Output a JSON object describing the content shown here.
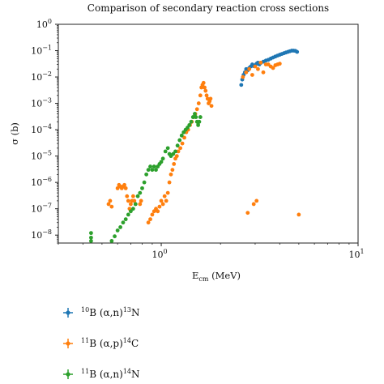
{
  "chart_data": {
    "type": "scatter",
    "title": "Comparison of secondary reaction cross sections",
    "xlabel": {
      "main": "E",
      "sub": "cm",
      "unit": " (MeV)"
    },
    "ylabel": "σ (b)",
    "xscale": "log",
    "yscale": "log",
    "xlim": [
      0.3,
      10
    ],
    "ylim": [
      5e-09,
      1
    ],
    "x_ticks": [
      {
        "value": 1,
        "label": "10",
        "exp": "0"
      },
      {
        "value": 10,
        "label": "10",
        "exp": "1"
      }
    ],
    "y_ticks": [
      {
        "value": 1,
        "label": "10",
        "exp": "0"
      },
      {
        "value": 0.1,
        "label": "10",
        "exp": "−1"
      },
      {
        "value": 0.01,
        "label": "10",
        "exp": "−2"
      },
      {
        "value": 0.001,
        "label": "10",
        "exp": "−3"
      },
      {
        "value": 0.0001,
        "label": "10",
        "exp": "−4"
      },
      {
        "value": 1e-05,
        "label": "10",
        "exp": "−5"
      },
      {
        "value": 1e-06,
        "label": "10",
        "exp": "−6"
      },
      {
        "value": 1e-07,
        "label": "10",
        "exp": "−7"
      },
      {
        "value": 1e-08,
        "label": "10",
        "exp": "−8"
      }
    ],
    "grid": false,
    "legend_position": "bottom-left",
    "series": [
      {
        "name": "10B (α,n)13N",
        "legend": {
          "m1": "10",
          "t1": "B (α,n)",
          "m2": "13",
          "t2": "N"
        },
        "color": "#1f77b4",
        "points": [
          [
            2.55,
            0.005
          ],
          [
            2.58,
            0.008
          ],
          [
            2.62,
            0.012
          ],
          [
            2.66,
            0.015
          ],
          [
            2.7,
            0.02
          ],
          [
            2.75,
            0.018
          ],
          [
            2.8,
            0.022
          ],
          [
            2.85,
            0.025
          ],
          [
            2.9,
            0.03
          ],
          [
            2.95,
            0.026
          ],
          [
            3.0,
            0.028
          ],
          [
            3.05,
            0.032
          ],
          [
            3.1,
            0.035
          ],
          [
            3.15,
            0.03
          ],
          [
            3.2,
            0.034
          ],
          [
            3.3,
            0.038
          ],
          [
            3.4,
            0.042
          ],
          [
            3.5,
            0.045
          ],
          [
            3.6,
            0.05
          ],
          [
            3.7,
            0.055
          ],
          [
            3.8,
            0.06
          ],
          [
            3.9,
            0.065
          ],
          [
            4.0,
            0.07
          ],
          [
            4.1,
            0.075
          ],
          [
            4.2,
            0.08
          ],
          [
            4.3,
            0.085
          ],
          [
            4.4,
            0.09
          ],
          [
            4.5,
            0.095
          ],
          [
            4.6,
            0.1
          ],
          [
            4.7,
            0.1
          ],
          [
            4.8,
            0.098
          ],
          [
            4.9,
            0.09
          ]
        ]
      },
      {
        "name": "11B (α,p)14C",
        "legend": {
          "m1": "11",
          "t1": "B (α,p)",
          "m2": "14",
          "t2": "C"
        },
        "color": "#ff7f0e",
        "points": [
          [
            0.54,
            1.5e-07
          ],
          [
            0.55,
            2e-07
          ],
          [
            0.56,
            1.2e-07
          ],
          [
            0.6,
            6e-07
          ],
          [
            0.61,
            8e-07
          ],
          [
            0.62,
            7e-07
          ],
          [
            0.63,
            6e-07
          ],
          [
            0.64,
            7e-07
          ],
          [
            0.65,
            8e-07
          ],
          [
            0.66,
            6e-07
          ],
          [
            0.67,
            3e-07
          ],
          [
            0.68,
            2e-07
          ],
          [
            0.69,
            1e-07
          ],
          [
            0.7,
            1.5e-07
          ],
          [
            0.71,
            2e-07
          ],
          [
            0.72,
            3e-07
          ],
          [
            0.73,
            2e-07
          ],
          [
            0.74,
            1.5e-07
          ],
          [
            0.78,
            1.5e-07
          ],
          [
            0.79,
            2e-07
          ],
          [
            0.86,
            3e-08
          ],
          [
            0.88,
            4e-08
          ],
          [
            0.9,
            6e-08
          ],
          [
            0.92,
            8e-08
          ],
          [
            0.94,
            1e-07
          ],
          [
            0.96,
            8e-08
          ],
          [
            0.98,
            1.2e-07
          ],
          [
            1.0,
            2e-07
          ],
          [
            1.02,
            1.5e-07
          ],
          [
            1.04,
            3e-07
          ],
          [
            1.06,
            2e-07
          ],
          [
            1.08,
            4e-07
          ],
          [
            1.1,
            1e-06
          ],
          [
            1.12,
            2e-06
          ],
          [
            1.14,
            3e-06
          ],
          [
            1.16,
            5e-06
          ],
          [
            1.18,
            8e-06
          ],
          [
            1.2,
            1e-05
          ],
          [
            1.22,
            1.5e-05
          ],
          [
            1.25,
            2e-05
          ],
          [
            1.28,
            3e-05
          ],
          [
            1.31,
            5e-05
          ],
          [
            1.34,
            8e-05
          ],
          [
            1.37,
            0.0001
          ],
          [
            1.4,
            0.00015
          ],
          [
            1.43,
            0.0002
          ],
          [
            1.46,
            0.0003
          ],
          [
            1.49,
            0.0004
          ],
          [
            1.52,
            0.0006
          ],
          [
            1.55,
            0.001
          ],
          [
            1.58,
            0.002
          ],
          [
            1.6,
            0.004
          ],
          [
            1.62,
            0.005
          ],
          [
            1.64,
            0.006
          ],
          [
            1.66,
            0.004
          ],
          [
            1.68,
            0.003
          ],
          [
            1.7,
            0.002
          ],
          [
            1.72,
            0.0015
          ],
          [
            1.74,
            0.001
          ],
          [
            1.76,
            0.0012
          ],
          [
            1.78,
            0.0015
          ],
          [
            1.8,
            0.0008
          ],
          [
            2.6,
            0.01
          ],
          [
            2.7,
            0.015
          ],
          [
            2.8,
            0.02
          ],
          [
            2.9,
            0.012
          ],
          [
            3.0,
            0.025
          ],
          [
            3.1,
            0.02
          ],
          [
            3.2,
            0.035
          ],
          [
            3.3,
            0.015
          ],
          [
            3.4,
            0.03
          ],
          [
            3.5,
            0.03
          ],
          [
            3.6,
            0.025
          ],
          [
            3.7,
            0.022
          ],
          [
            3.8,
            0.028
          ],
          [
            3.9,
            0.03
          ],
          [
            4.0,
            0.032
          ],
          [
            2.75,
            7e-08
          ],
          [
            2.95,
            1.5e-07
          ],
          [
            3.05,
            2e-07
          ],
          [
            5.0,
            6e-08
          ]
        ]
      },
      {
        "name": "11B (α,n)14N",
        "legend": {
          "m1": "11",
          "t1": "B (α,n)",
          "m2": "14",
          "t2": "N"
        },
        "color": "#2ca02c",
        "points": [
          [
            0.44,
            1.2e-08
          ],
          [
            0.44,
            8e-09
          ],
          [
            0.44,
            6e-09
          ],
          [
            0.56,
            6e-09
          ],
          [
            0.58,
            9e-09
          ],
          [
            0.6,
            1.5e-08
          ],
          [
            0.62,
            2e-08
          ],
          [
            0.64,
            3e-08
          ],
          [
            0.66,
            4e-08
          ],
          [
            0.68,
            6e-08
          ],
          [
            0.7,
            8e-08
          ],
          [
            0.72,
            1e-07
          ],
          [
            0.74,
            1.5e-07
          ],
          [
            0.76,
            3e-07
          ],
          [
            0.78,
            4e-07
          ],
          [
            0.8,
            6e-07
          ],
          [
            0.82,
            1e-06
          ],
          [
            0.84,
            2e-06
          ],
          [
            0.86,
            3e-06
          ],
          [
            0.88,
            4e-06
          ],
          [
            0.9,
            3e-06
          ],
          [
            0.92,
            4e-06
          ],
          [
            0.94,
            3e-06
          ],
          [
            0.96,
            4e-06
          ],
          [
            0.98,
            5e-06
          ],
          [
            1.0,
            6e-06
          ],
          [
            1.02,
            8e-06
          ],
          [
            1.05,
            1.5e-05
          ],
          [
            1.08,
            2e-05
          ],
          [
            1.1,
            1.2e-05
          ],
          [
            1.12,
            1e-05
          ],
          [
            1.15,
            1.2e-05
          ],
          [
            1.18,
            1.5e-05
          ],
          [
            1.21,
            2.5e-05
          ],
          [
            1.24,
            4e-05
          ],
          [
            1.27,
            6e-05
          ],
          [
            1.3,
            8e-05
          ],
          [
            1.33,
            0.0001
          ],
          [
            1.36,
            0.00012
          ],
          [
            1.39,
            0.00015
          ],
          [
            1.42,
            0.0002
          ],
          [
            1.45,
            0.0003
          ],
          [
            1.48,
            0.0004
          ],
          [
            1.5,
            0.0003
          ],
          [
            1.52,
            0.0002
          ],
          [
            1.54,
            0.00015
          ],
          [
            1.56,
            0.0002
          ],
          [
            1.58,
            0.0003
          ]
        ]
      }
    ]
  }
}
